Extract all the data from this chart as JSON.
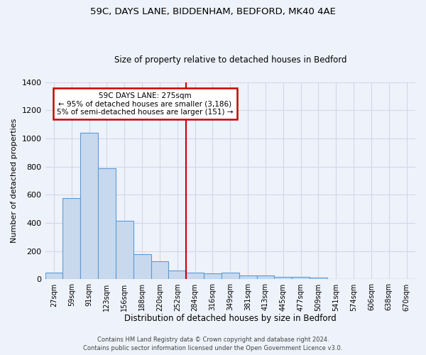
{
  "title1": "59C, DAYS LANE, BIDDENHAM, BEDFORD, MK40 4AE",
  "title2": "Size of property relative to detached houses in Bedford",
  "xlabel": "Distribution of detached houses by size in Bedford",
  "ylabel": "Number of detached properties",
  "categories": [
    "27sqm",
    "59sqm",
    "91sqm",
    "123sqm",
    "156sqm",
    "188sqm",
    "220sqm",
    "252sqm",
    "284sqm",
    "316sqm",
    "349sqm",
    "381sqm",
    "413sqm",
    "445sqm",
    "477sqm",
    "509sqm",
    "541sqm",
    "574sqm",
    "606sqm",
    "638sqm",
    "670sqm"
  ],
  "values": [
    50,
    575,
    1040,
    790,
    415,
    180,
    130,
    65,
    50,
    45,
    50,
    30,
    30,
    20,
    15,
    10,
    0,
    0,
    0,
    0,
    0
  ],
  "bar_color": "#c9d9ed",
  "bar_edge_color": "#5b9bd5",
  "background_color": "#eef2fa",
  "grid_color": "#d0d8e8",
  "vline_x": 7.5,
  "vline_color": "#cc0000",
  "annotation_text": "59C DAYS LANE: 275sqm\n← 95% of detached houses are smaller (3,186)\n5% of semi-detached houses are larger (151) →",
  "annotation_box_color": "#ffffff",
  "annotation_box_edge_color": "#cc0000",
  "ylim": [
    0,
    1400
  ],
  "yticks": [
    0,
    200,
    400,
    600,
    800,
    1000,
    1200,
    1400
  ],
  "footnote1": "Contains HM Land Registry data © Crown copyright and database right 2024.",
  "footnote2": "Contains public sector information licensed under the Open Government Licence v3.0."
}
